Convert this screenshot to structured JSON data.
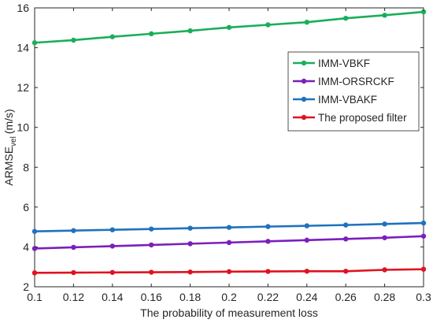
{
  "chart_data": {
    "type": "line",
    "xlabel": "The probability of measurement loss",
    "ylabel": "ARMSE",
    "ylabel_subscript": "vel",
    "ylabel_unit": "(m/s)",
    "xlim": [
      0.1,
      0.3
    ],
    "ylim": [
      2,
      16
    ],
    "x_ticks": [
      "0.1",
      "0.12",
      "0.14",
      "0.16",
      "0.18",
      "0.2",
      "0.22",
      "0.24",
      "0.26",
      "0.28",
      "0.3"
    ],
    "y_ticks": [
      "2",
      "4",
      "6",
      "8",
      "10",
      "12",
      "14",
      "16"
    ],
    "grid": false,
    "legend_position": "right",
    "x": [
      0.1,
      0.12,
      0.14,
      0.16,
      0.18,
      0.2,
      0.22,
      0.24,
      0.26,
      0.28,
      0.3
    ],
    "series": [
      {
        "name": "IMM-VBKF",
        "color": "#1aae5a",
        "values": [
          14.25,
          14.38,
          14.55,
          14.7,
          14.85,
          15.02,
          15.15,
          15.28,
          15.48,
          15.63,
          15.8
        ]
      },
      {
        "name": "IMM-ORSRCKF",
        "color": "#7b1fbd",
        "values": [
          3.92,
          3.98,
          4.04,
          4.1,
          4.16,
          4.22,
          4.28,
          4.34,
          4.4,
          4.46,
          4.54
        ]
      },
      {
        "name": "IMM-VBAKF",
        "color": "#1f72bd",
        "values": [
          4.78,
          4.82,
          4.86,
          4.9,
          4.94,
          4.98,
          5.02,
          5.06,
          5.1,
          5.15,
          5.2
        ]
      },
      {
        "name": "The proposed filter",
        "color": "#e0121f",
        "values": [
          2.7,
          2.71,
          2.72,
          2.73,
          2.74,
          2.76,
          2.77,
          2.78,
          2.78,
          2.85,
          2.88
        ]
      }
    ]
  }
}
